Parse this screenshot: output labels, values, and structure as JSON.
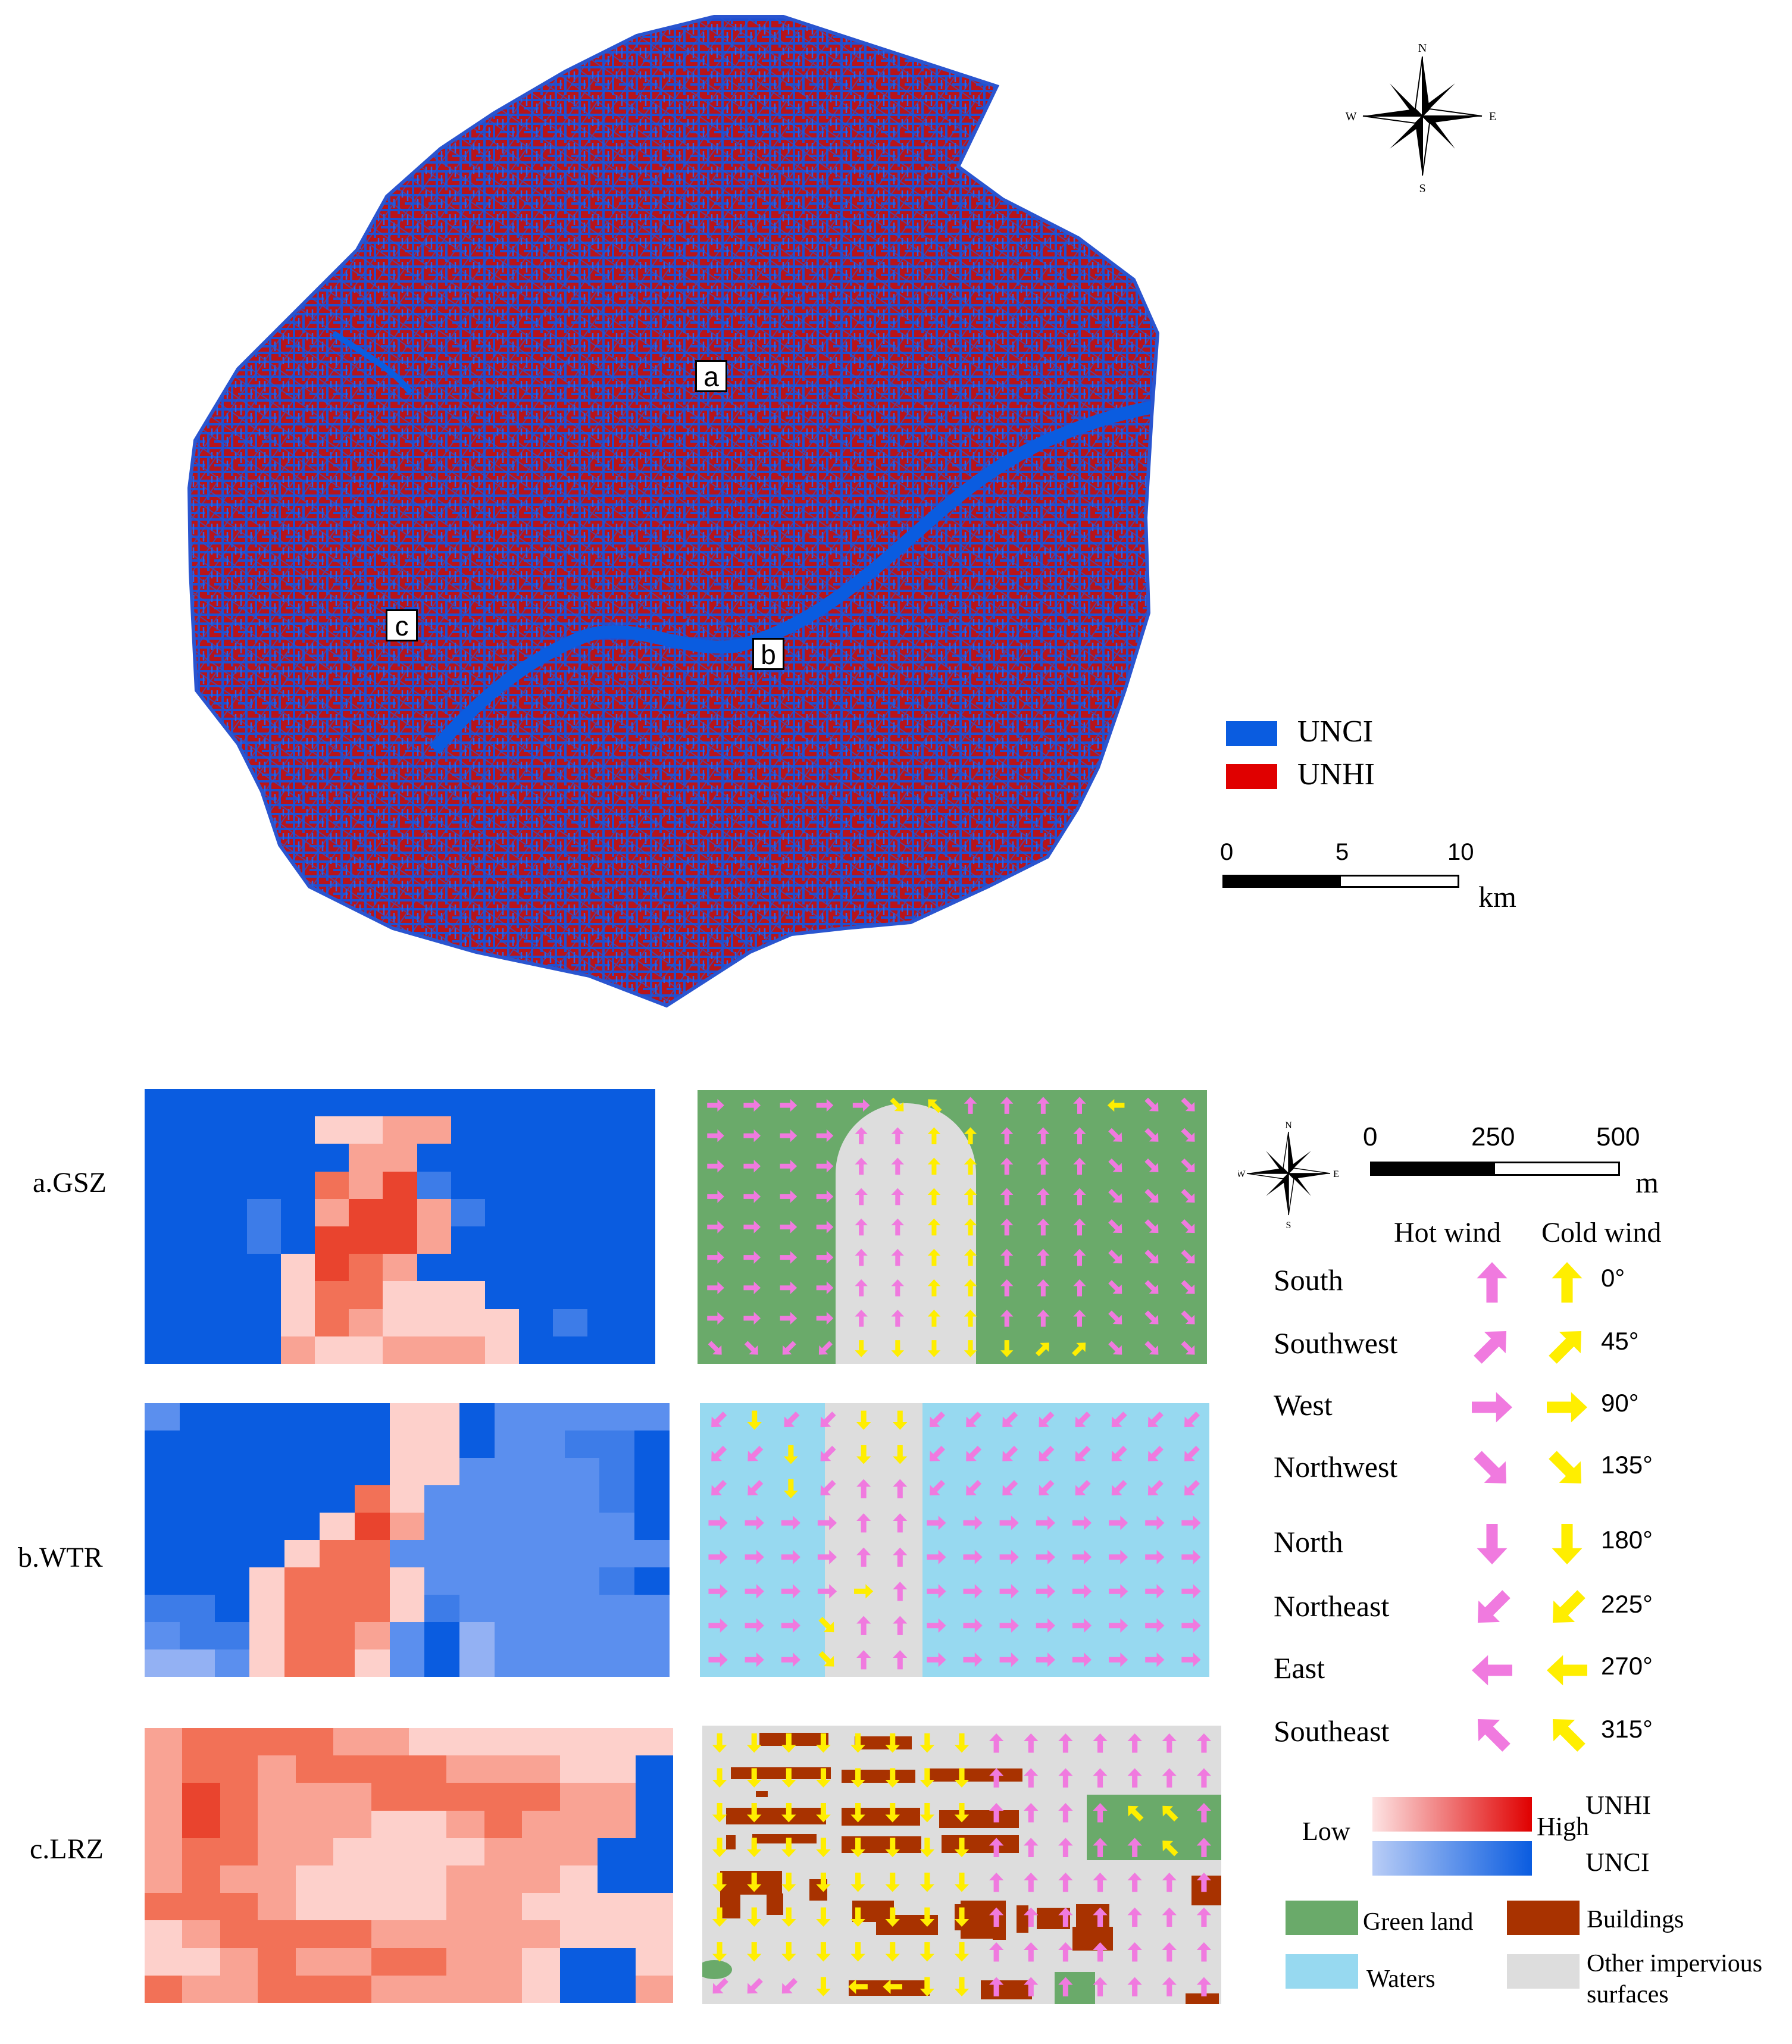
{
  "main_map": {
    "markers": [
      "a",
      "b",
      "c"
    ],
    "legend": [
      {
        "label": "UNCI",
        "color": "#0a5ce0"
      },
      {
        "label": "UNHI",
        "color": "#e00000"
      }
    ],
    "scalebar": {
      "ticks": [
        "0",
        "5",
        "10"
      ],
      "unit": "km"
    },
    "north_arrow": {
      "n": "N",
      "s": "S",
      "e": "E",
      "w": "W"
    }
  },
  "panels": [
    {
      "label": "a.GSZ",
      "land_cover": [
        "Green land",
        "Other impervious surfaces"
      ]
    },
    {
      "label": "b.WTR",
      "land_cover": [
        "Waters",
        "Other impervious surfaces"
      ]
    },
    {
      "label": "c.LRZ",
      "land_cover": [
        "Buildings",
        "Other impervious surfaces",
        "Green land"
      ]
    }
  ],
  "wind_legend": {
    "scalebar": {
      "ticks": [
        "0",
        "250",
        "500"
      ],
      "unit": "m"
    },
    "north_arrow": {
      "n": "N",
      "s": "S",
      "e": "E",
      "w": "W"
    },
    "hot_header": "Hot wind",
    "cold_header": "Cold wind",
    "hot_color": "#f07adf",
    "cold_color": "#ffee00",
    "directions": [
      {
        "name": "South",
        "angle": "0°"
      },
      {
        "name": "Southwest",
        "angle": "45°"
      },
      {
        "name": "West",
        "angle": "90°"
      },
      {
        "name": "Northwest",
        "angle": "135°"
      },
      {
        "name": "North",
        "angle": "180°"
      },
      {
        "name": "Northeast",
        "angle": "225°"
      },
      {
        "name": "East",
        "angle": "270°"
      },
      {
        "name": "Southeast",
        "angle": "315°"
      }
    ]
  },
  "intensity_legend": {
    "low": "Low",
    "high": "High",
    "unhi": "UNHI",
    "unci": "UNCI"
  },
  "landcover_legend": [
    {
      "label": "Green land",
      "color": "#6aaa6a"
    },
    {
      "label": "Buildings",
      "color": "#a83200"
    },
    {
      "label": "Waters",
      "color": "#97d9f0"
    },
    {
      "label": "Other impervious surfaces",
      "color": "#dddddd"
    }
  ],
  "colors": {
    "blue": "#0a5ce0",
    "red": "#e00000",
    "green": "#6aaa6a",
    "water": "#97d9f0",
    "impervious": "#dddddd",
    "building": "#a83200"
  }
}
